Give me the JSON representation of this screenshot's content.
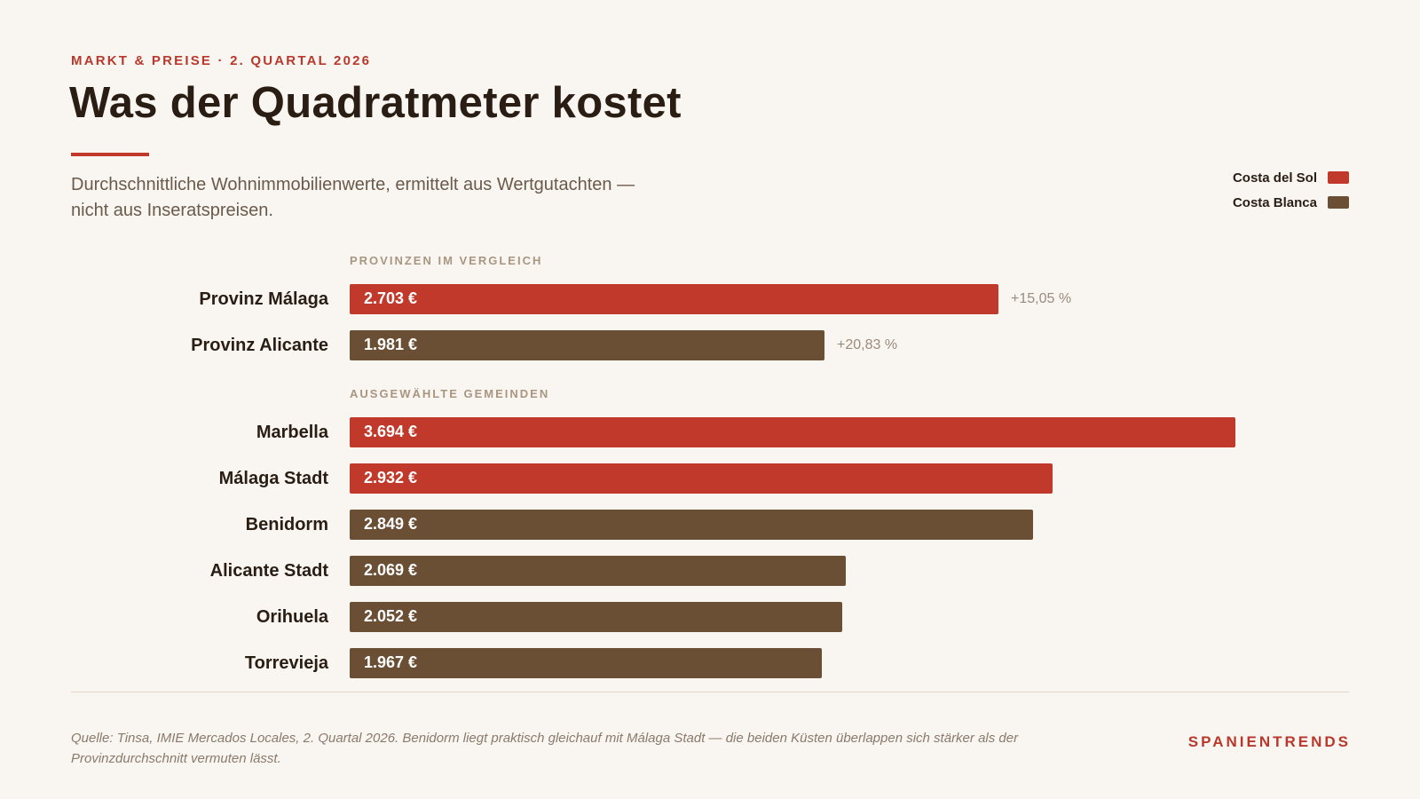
{
  "header": {
    "kicker": "MARKT & PREISE · 2. QUARTAL 2026",
    "title": "Was der Quadratmeter kostet",
    "subtitle": "Durchschnittliche Wohnimmobilienwerte, ermittelt aus Wertgutachten — nicht aus Inseratspreisen."
  },
  "legend": [
    {
      "label": "Costa del Sol",
      "color": "#c0392b"
    },
    {
      "label": "Costa Blanca",
      "color": "#6b4f34"
    }
  ],
  "chart_data": {
    "type": "bar",
    "orientation": "horizontal",
    "unit": "€",
    "xlim": [
      0,
      3700
    ],
    "grid": false,
    "legend_position": "top-right",
    "series_colors": {
      "Costa del Sol": "#c0392b",
      "Costa Blanca": "#6b4f34"
    },
    "groups": [
      {
        "label": "PROVINZEN IM VERGLEICH",
        "bars": [
          {
            "category": "Provinz Málaga",
            "value": 2703,
            "value_label": "2.703 €",
            "series": "Costa del Sol",
            "change": "+15,05 %"
          },
          {
            "category": "Provinz Alicante",
            "value": 1981,
            "value_label": "1.981 €",
            "series": "Costa Blanca",
            "change": "+20,83 %"
          }
        ]
      },
      {
        "label": "AUSGEWÄHLTE GEMEINDEN",
        "bars": [
          {
            "category": "Marbella",
            "value": 3694,
            "value_label": "3.694 €",
            "series": "Costa del Sol"
          },
          {
            "category": "Málaga Stadt",
            "value": 2932,
            "value_label": "2.932 €",
            "series": "Costa del Sol"
          },
          {
            "category": "Benidorm",
            "value": 2849,
            "value_label": "2.849 €",
            "series": "Costa Blanca"
          },
          {
            "category": "Alicante Stadt",
            "value": 2069,
            "value_label": "2.069 €",
            "series": "Costa Blanca"
          },
          {
            "category": "Orihuela",
            "value": 2052,
            "value_label": "2.052 €",
            "series": "Costa Blanca"
          },
          {
            "category": "Torrevieja",
            "value": 1967,
            "value_label": "1.967 €",
            "series": "Costa Blanca"
          }
        ]
      }
    ]
  },
  "footer": {
    "source": "Quelle: Tinsa, IMIE Mercados Locales, 2. Quartal 2026. Benidorm liegt praktisch gleichauf mit Málaga Stadt — die beiden Küsten überlappen sich stärker als der Provinzdurchschnitt vermuten lässt.",
    "brand": "SPANIENTRENDS"
  }
}
